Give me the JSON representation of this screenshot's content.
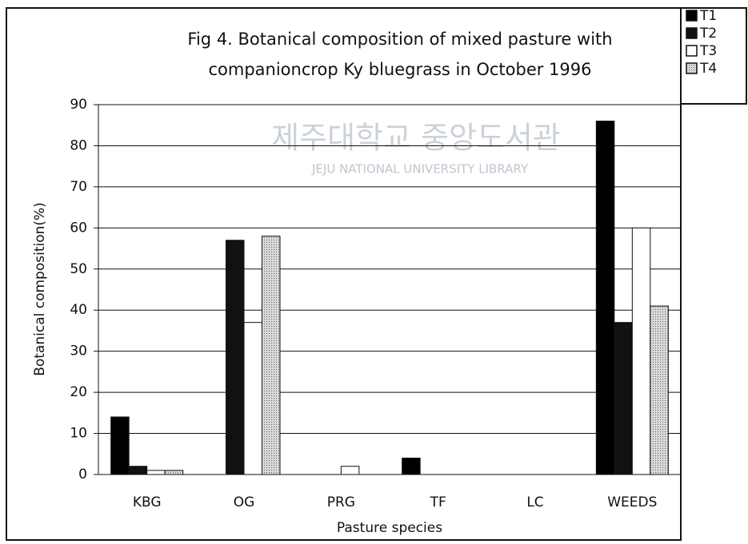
{
  "chart_data": {
    "type": "bar",
    "title": "Fig 4. Botanical composition of mixed pasture with",
    "subtitle": "companioncrop Ky bluegrass in October 1996",
    "watermark": "제주대학교 중앙도서관",
    "watermark_sub": "JEJU NATIONAL UNIVERSITY LIBRARY",
    "x_label": "Pasture species",
    "y_label": "Botanical composition(%)",
    "categories": [
      "KBG",
      "OG",
      "PRG",
      "TF",
      "LC",
      "WEEDS"
    ],
    "series": [
      {
        "name": "T1",
        "color": "#000000",
        "values": [
          14,
          0,
          0,
          4,
          0,
          86
        ]
      },
      {
        "name": "T2",
        "color": "#111111",
        "values": [
          2,
          57,
          0,
          0,
          0,
          37
        ]
      },
      {
        "name": "T3",
        "color": "#ffffff",
        "values": [
          1,
          37,
          2,
          0,
          0,
          60
        ]
      },
      {
        "name": "T4",
        "color": "#c8c8c8",
        "values": [
          1,
          58,
          0,
          0,
          0,
          41
        ]
      }
    ],
    "ylim": [
      0,
      90
    ],
    "yticks": [
      0,
      10,
      20,
      30,
      40,
      50,
      60,
      70,
      80,
      90
    ],
    "grid": true,
    "legend": "top-right"
  }
}
